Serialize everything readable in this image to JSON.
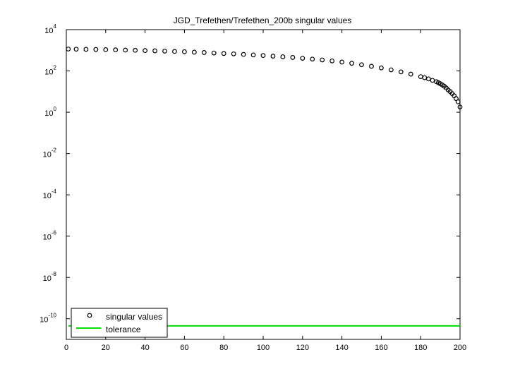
{
  "chart_data": {
    "type": "scatter",
    "title": "JGD_Trefethen/Trefethen_200b singular values",
    "xlabel": "",
    "ylabel": "",
    "xlim": [
      0,
      200
    ],
    "ylim": [
      1e-11,
      10000
    ],
    "y_scale": "log",
    "x_ticks": [
      "0",
      "20",
      "40",
      "60",
      "80",
      "100",
      "120",
      "140",
      "160",
      "180",
      "200"
    ],
    "y_ticks": [
      {
        "base": "10",
        "exp": "4",
        "value": 10000
      },
      {
        "base": "10",
        "exp": "2",
        "value": 100
      },
      {
        "base": "10",
        "exp": "0",
        "value": 1
      },
      {
        "base": "10",
        "exp": "-2",
        "value": 0.01
      },
      {
        "base": "10",
        "exp": "-4",
        "value": 0.0001
      },
      {
        "base": "10",
        "exp": "-6",
        "value": 1e-06
      },
      {
        "base": "10",
        "exp": "-8",
        "value": 1e-08
      },
      {
        "base": "10",
        "exp": "-10",
        "value": 1e-10
      }
    ],
    "grid": false,
    "legend_position": "bottom-left",
    "series": [
      {
        "name": "singular values",
        "marker": "circle",
        "color": "#000000",
        "x": [
          1,
          5,
          10,
          15,
          20,
          25,
          30,
          35,
          40,
          45,
          50,
          55,
          60,
          65,
          70,
          75,
          80,
          85,
          90,
          95,
          100,
          105,
          110,
          115,
          120,
          125,
          130,
          135,
          140,
          145,
          150,
          155,
          160,
          165,
          170,
          175,
          180,
          182,
          184,
          186,
          188,
          189,
          190,
          191,
          192,
          193,
          194,
          195,
          196,
          197,
          198,
          199,
          200
        ],
        "y": [
          1150,
          1130,
          1110,
          1090,
          1070,
          1050,
          1020,
          1000,
          970,
          940,
          910,
          880,
          850,
          810,
          780,
          740,
          700,
          670,
          630,
          595,
          560,
          520,
          485,
          450,
          410,
          375,
          340,
          305,
          270,
          235,
          200,
          168,
          140,
          113,
          90,
          70,
          53,
          47,
          41,
          35,
          30,
          27,
          24,
          21,
          18,
          15,
          12,
          10,
          8,
          6.3,
          4.6,
          3.2,
          1.8
        ]
      },
      {
        "name": "tolerance",
        "marker": "line",
        "color": "#00dd00",
        "x": [
          1,
          200
        ],
        "y": [
          4.5e-11,
          4.5e-11
        ]
      }
    ]
  }
}
